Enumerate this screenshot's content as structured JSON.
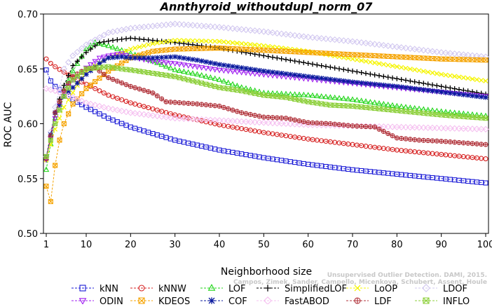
{
  "chart_data": {
    "type": "line",
    "title": "Annthyroid_withoutdupl_norm_07",
    "xlabel": "Neighborhood size",
    "ylabel": "ROC AUC",
    "xlim": [
      1,
      100
    ],
    "ylim": [
      0.5,
      0.7
    ],
    "xticks": [
      1,
      10,
      20,
      30,
      40,
      50,
      60,
      70,
      80,
      90,
      100
    ],
    "yticks": [
      0.5,
      0.55,
      0.6,
      0.65,
      0.7
    ],
    "ytick_labels": [
      "0.50",
      "0.55",
      "0.60",
      "0.65",
      "0.70"
    ],
    "grid": false,
    "legend_position": "bottom",
    "watermark": "Campos, Zimek, Sander, Campello, Micenkova, Schubert, Assent, Houle · Unsupervised Outlier Detection. DAMI, 2015.",
    "series": [
      {
        "name": "kNN",
        "color": "#1a1ad6",
        "marker": "square",
        "points": [
          [
            1,
            0.649
          ],
          [
            2,
            0.639
          ],
          [
            3,
            0.634
          ],
          [
            5,
            0.628
          ],
          [
            7,
            0.622
          ],
          [
            10,
            0.615
          ],
          [
            15,
            0.605
          ],
          [
            20,
            0.597
          ],
          [
            30,
            0.585
          ],
          [
            40,
            0.576
          ],
          [
            50,
            0.569
          ],
          [
            60,
            0.563
          ],
          [
            70,
            0.558
          ],
          [
            80,
            0.554
          ],
          [
            90,
            0.55
          ],
          [
            100,
            0.546
          ]
        ]
      },
      {
        "name": "kNNW",
        "color": "#d62020",
        "marker": "circle",
        "points": [
          [
            1,
            0.659
          ],
          [
            2,
            0.655
          ],
          [
            3,
            0.652
          ],
          [
            5,
            0.647
          ],
          [
            7,
            0.642
          ],
          [
            10,
            0.636
          ],
          [
            15,
            0.626
          ],
          [
            20,
            0.619
          ],
          [
            30,
            0.608
          ],
          [
            40,
            0.599
          ],
          [
            50,
            0.592
          ],
          [
            60,
            0.586
          ],
          [
            70,
            0.581
          ],
          [
            80,
            0.576
          ],
          [
            90,
            0.572
          ],
          [
            100,
            0.568
          ]
        ]
      },
      {
        "name": "LOF",
        "color": "#22d61a",
        "marker": "triangle-up",
        "points": [
          [
            1,
            0.558
          ],
          [
            3,
            0.605
          ],
          [
            5,
            0.63
          ],
          [
            7,
            0.648
          ],
          [
            10,
            0.668
          ],
          [
            12,
            0.674
          ],
          [
            15,
            0.671
          ],
          [
            20,
            0.664
          ],
          [
            25,
            0.657
          ],
          [
            30,
            0.649
          ],
          [
            35,
            0.645
          ],
          [
            40,
            0.64
          ],
          [
            45,
            0.633
          ],
          [
            50,
            0.628
          ],
          [
            60,
            0.626
          ],
          [
            70,
            0.622
          ],
          [
            80,
            0.616
          ],
          [
            90,
            0.611
          ],
          [
            100,
            0.607
          ]
        ]
      },
      {
        "name": "SimplifiedLOF",
        "color": "#000000",
        "marker": "plus",
        "points": [
          [
            1,
            0.567
          ],
          [
            3,
            0.61
          ],
          [
            5,
            0.635
          ],
          [
            7,
            0.653
          ],
          [
            10,
            0.665
          ],
          [
            13,
            0.674
          ],
          [
            16,
            0.676
          ],
          [
            20,
            0.678
          ],
          [
            25,
            0.676
          ],
          [
            30,
            0.674
          ],
          [
            40,
            0.669
          ],
          [
            50,
            0.662
          ],
          [
            60,
            0.655
          ],
          [
            70,
            0.648
          ],
          [
            80,
            0.641
          ],
          [
            90,
            0.634
          ],
          [
            100,
            0.627
          ]
        ]
      },
      {
        "name": "LoOP",
        "color": "#f5f500",
        "marker": "x",
        "points": [
          [
            1,
            0.567
          ],
          [
            3,
            0.595
          ],
          [
            5,
            0.615
          ],
          [
            8,
            0.635
          ],
          [
            10,
            0.648
          ],
          [
            15,
            0.66
          ],
          [
            20,
            0.668
          ],
          [
            25,
            0.673
          ],
          [
            30,
            0.676
          ],
          [
            40,
            0.675
          ],
          [
            50,
            0.671
          ],
          [
            60,
            0.666
          ],
          [
            70,
            0.659
          ],
          [
            80,
            0.652
          ],
          [
            90,
            0.645
          ],
          [
            100,
            0.639
          ]
        ]
      },
      {
        "name": "LDOF",
        "color": "#d2c8f0",
        "marker": "diamond",
        "points": [
          [
            1,
            0.57
          ],
          [
            3,
            0.615
          ],
          [
            5,
            0.65
          ],
          [
            7,
            0.662
          ],
          [
            10,
            0.672
          ],
          [
            15,
            0.683
          ],
          [
            20,
            0.687
          ],
          [
            25,
            0.689
          ],
          [
            30,
            0.691
          ],
          [
            40,
            0.688
          ],
          [
            50,
            0.684
          ],
          [
            60,
            0.679
          ],
          [
            70,
            0.675
          ],
          [
            80,
            0.67
          ],
          [
            90,
            0.665
          ],
          [
            100,
            0.661
          ]
        ]
      },
      {
        "name": "ODIN",
        "color": "#a020f0",
        "marker": "triangle-down",
        "points": [
          [
            1,
            0.568
          ],
          [
            3,
            0.605
          ],
          [
            5,
            0.628
          ],
          [
            7,
            0.64
          ],
          [
            10,
            0.651
          ],
          [
            13,
            0.66
          ],
          [
            15,
            0.662
          ],
          [
            18,
            0.664
          ],
          [
            20,
            0.661
          ],
          [
            25,
            0.657
          ],
          [
            30,
            0.655
          ],
          [
            35,
            0.652
          ],
          [
            40,
            0.649
          ],
          [
            50,
            0.645
          ],
          [
            60,
            0.641
          ],
          [
            70,
            0.637
          ],
          [
            80,
            0.633
          ],
          [
            90,
            0.629
          ],
          [
            100,
            0.625
          ]
        ]
      },
      {
        "name": "KDEOS",
        "color": "#f5a300",
        "marker": "square-x",
        "points": [
          [
            1,
            0.543
          ],
          [
            2,
            0.529
          ],
          [
            3,
            0.562
          ],
          [
            4,
            0.585
          ],
          [
            5,
            0.6
          ],
          [
            7,
            0.618
          ],
          [
            10,
            0.632
          ],
          [
            15,
            0.648
          ],
          [
            20,
            0.66
          ],
          [
            25,
            0.666
          ],
          [
            30,
            0.668
          ],
          [
            40,
            0.669
          ],
          [
            50,
            0.667
          ],
          [
            60,
            0.665
          ],
          [
            70,
            0.663
          ],
          [
            80,
            0.661
          ],
          [
            90,
            0.659
          ],
          [
            100,
            0.658
          ]
        ]
      },
      {
        "name": "COF",
        "color": "#0a1a9e",
        "marker": "asterisk",
        "points": [
          [
            1,
            0.57
          ],
          [
            3,
            0.61
          ],
          [
            5,
            0.625
          ],
          [
            7,
            0.633
          ],
          [
            10,
            0.645
          ],
          [
            13,
            0.655
          ],
          [
            15,
            0.66
          ],
          [
            18,
            0.661
          ],
          [
            20,
            0.66
          ],
          [
            25,
            0.66
          ],
          [
            30,
            0.661
          ],
          [
            35,
            0.658
          ],
          [
            40,
            0.654
          ],
          [
            50,
            0.648
          ],
          [
            60,
            0.643
          ],
          [
            70,
            0.638
          ],
          [
            80,
            0.634
          ],
          [
            90,
            0.629
          ],
          [
            100,
            0.624
          ]
        ]
      },
      {
        "name": "FastABOD",
        "color": "#f5c0f0",
        "marker": "diamond",
        "points": [
          [
            1,
            0.632
          ],
          [
            3,
            0.63
          ],
          [
            5,
            0.627
          ],
          [
            7,
            0.624
          ],
          [
            10,
            0.619
          ],
          [
            15,
            0.614
          ],
          [
            20,
            0.61
          ],
          [
            30,
            0.605
          ],
          [
            40,
            0.603
          ],
          [
            50,
            0.601
          ],
          [
            60,
            0.599
          ],
          [
            70,
            0.598
          ],
          [
            80,
            0.597
          ],
          [
            90,
            0.596
          ],
          [
            100,
            0.595
          ]
        ]
      },
      {
        "name": "LDF",
        "color": "#b03038",
        "marker": "circle-plus",
        "points": [
          [
            1,
            0.568
          ],
          [
            3,
            0.61
          ],
          [
            5,
            0.63
          ],
          [
            7,
            0.643
          ],
          [
            10,
            0.65
          ],
          [
            12,
            0.651
          ],
          [
            15,
            0.642
          ],
          [
            20,
            0.634
          ],
          [
            25,
            0.628
          ],
          [
            28,
            0.62
          ],
          [
            35,
            0.618
          ],
          [
            40,
            0.616
          ],
          [
            45,
            0.61
          ],
          [
            50,
            0.606
          ],
          [
            55,
            0.605
          ],
          [
            60,
            0.601
          ],
          [
            65,
            0.6
          ],
          [
            70,
            0.598
          ],
          [
            75,
            0.597
          ],
          [
            78,
            0.591
          ],
          [
            80,
            0.587
          ],
          [
            85,
            0.585
          ],
          [
            90,
            0.584
          ],
          [
            100,
            0.581
          ]
        ]
      },
      {
        "name": "INFLO",
        "color": "#8ccf3a",
        "marker": "box-x",
        "points": [
          [
            1,
            0.57
          ],
          [
            3,
            0.6
          ],
          [
            5,
            0.625
          ],
          [
            7,
            0.64
          ],
          [
            10,
            0.65
          ],
          [
            15,
            0.652
          ],
          [
            18,
            0.65
          ],
          [
            20,
            0.649
          ],
          [
            25,
            0.646
          ],
          [
            30,
            0.643
          ],
          [
            35,
            0.638
          ],
          [
            40,
            0.633
          ],
          [
            45,
            0.63
          ],
          [
            50,
            0.626
          ],
          [
            55,
            0.624
          ],
          [
            60,
            0.62
          ],
          [
            65,
            0.617
          ],
          [
            70,
            0.616
          ],
          [
            75,
            0.614
          ],
          [
            80,
            0.612
          ],
          [
            85,
            0.61
          ],
          [
            90,
            0.608
          ],
          [
            100,
            0.605
          ]
        ]
      }
    ]
  }
}
